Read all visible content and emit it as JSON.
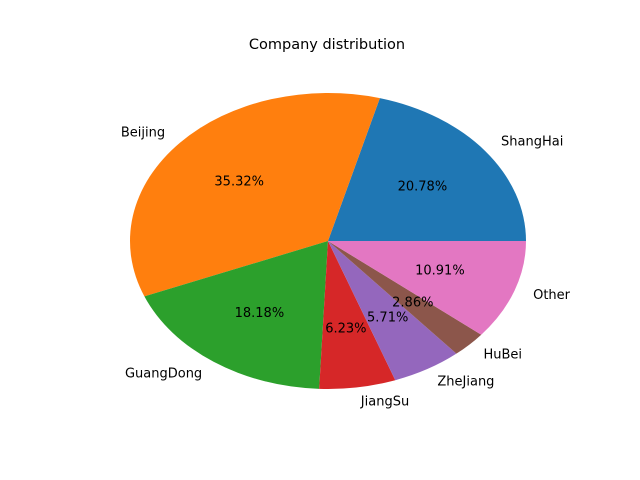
{
  "chart_data": {
    "type": "pie",
    "title": "Company distribution",
    "slices": [
      {
        "label": "ShangHai",
        "percent": 20.78,
        "pct_text": "20.78%",
        "color": "#1f77b4"
      },
      {
        "label": "Beijing",
        "percent": 35.32,
        "pct_text": "35.32%",
        "color": "#ff7f0e"
      },
      {
        "label": "GuangDong",
        "percent": 18.18,
        "pct_text": "18.18%",
        "color": "#2ca02c"
      },
      {
        "label": "JiangSu",
        "percent": 6.23,
        "pct_text": "6.23%",
        "color": "#d62728"
      },
      {
        "label": "ZheJiang",
        "percent": 5.71,
        "pct_text": "5.71%",
        "color": "#9467bd"
      },
      {
        "label": "HuBei",
        "percent": 2.86,
        "pct_text": "2.86%",
        "color": "#8c564b"
      },
      {
        "label": "Other",
        "percent": 10.91,
        "pct_text": "10.91%",
        "color": "#e377c2"
      }
    ],
    "start_angle_deg": 0,
    "direction": "counterclockwise",
    "legend": "none"
  }
}
